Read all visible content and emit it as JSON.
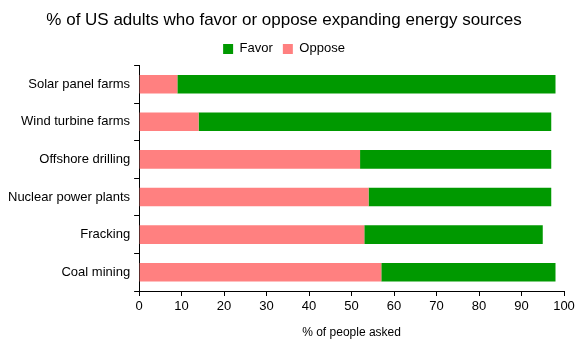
{
  "chart_data": {
    "type": "bar",
    "orientation": "horizontal",
    "stacked": true,
    "title": "% of US adults who favor or oppose expanding energy sources",
    "x_label": "% of people asked",
    "categories": [
      "Solar panel farms",
      "Wind turbine farms",
      "Offshore drilling",
      "Nuclear power plants",
      "Fracking",
      "Coal mining"
    ],
    "series": [
      {
        "name": "Oppose",
        "color": "#ff8080",
        "values": [
          9,
          14,
          52,
          54,
          53,
          57
        ]
      },
      {
        "name": "Favor",
        "color": "#009900",
        "values": [
          89,
          83,
          45,
          43,
          42,
          41
        ]
      }
    ],
    "xlim": [
      0,
      100
    ],
    "xticks": [
      0,
      10,
      20,
      30,
      40,
      50,
      60,
      70,
      80,
      90,
      100
    ],
    "grid": false,
    "legend": "top"
  }
}
